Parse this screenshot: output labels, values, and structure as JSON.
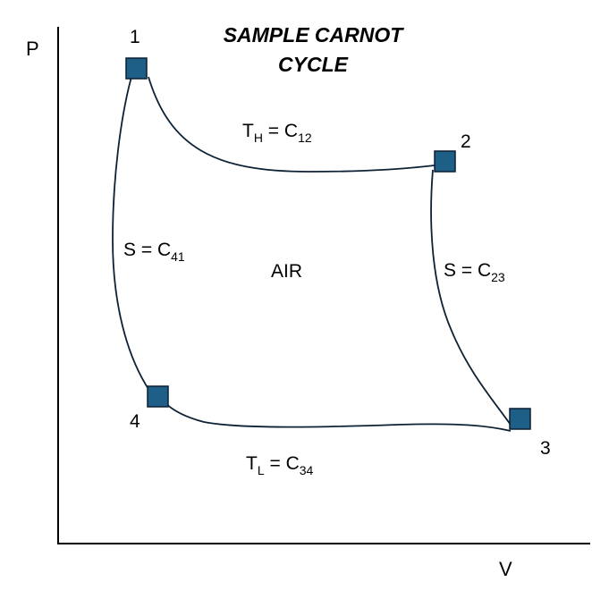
{
  "title": {
    "line1": "SAMPLE CARNOT",
    "line2": "CYCLE"
  },
  "axes": {
    "y_label": "P",
    "x_label": "V"
  },
  "working_fluid": "AIR",
  "states": [
    {
      "id": "1"
    },
    {
      "id": "2"
    },
    {
      "id": "3"
    },
    {
      "id": "4"
    }
  ],
  "processes": [
    {
      "from": "1",
      "to": "2",
      "symbol": "T",
      "subscript": "H",
      "constant": "C",
      "constant_subscript": "12"
    },
    {
      "from": "2",
      "to": "3",
      "symbol": "S",
      "subscript": "",
      "constant": "C",
      "constant_subscript": "23"
    },
    {
      "from": "3",
      "to": "4",
      "symbol": "T",
      "subscript": "L",
      "constant": "C",
      "constant_subscript": "34"
    },
    {
      "from": "4",
      "to": "1",
      "symbol": "S",
      "subscript": "",
      "constant": "C",
      "constant_subscript": "41"
    }
  ],
  "colors": {
    "marker_fill": "#1d5f86",
    "marker_stroke": "#0b1f33",
    "curve": "#0e2236",
    "axis": "#000000"
  }
}
